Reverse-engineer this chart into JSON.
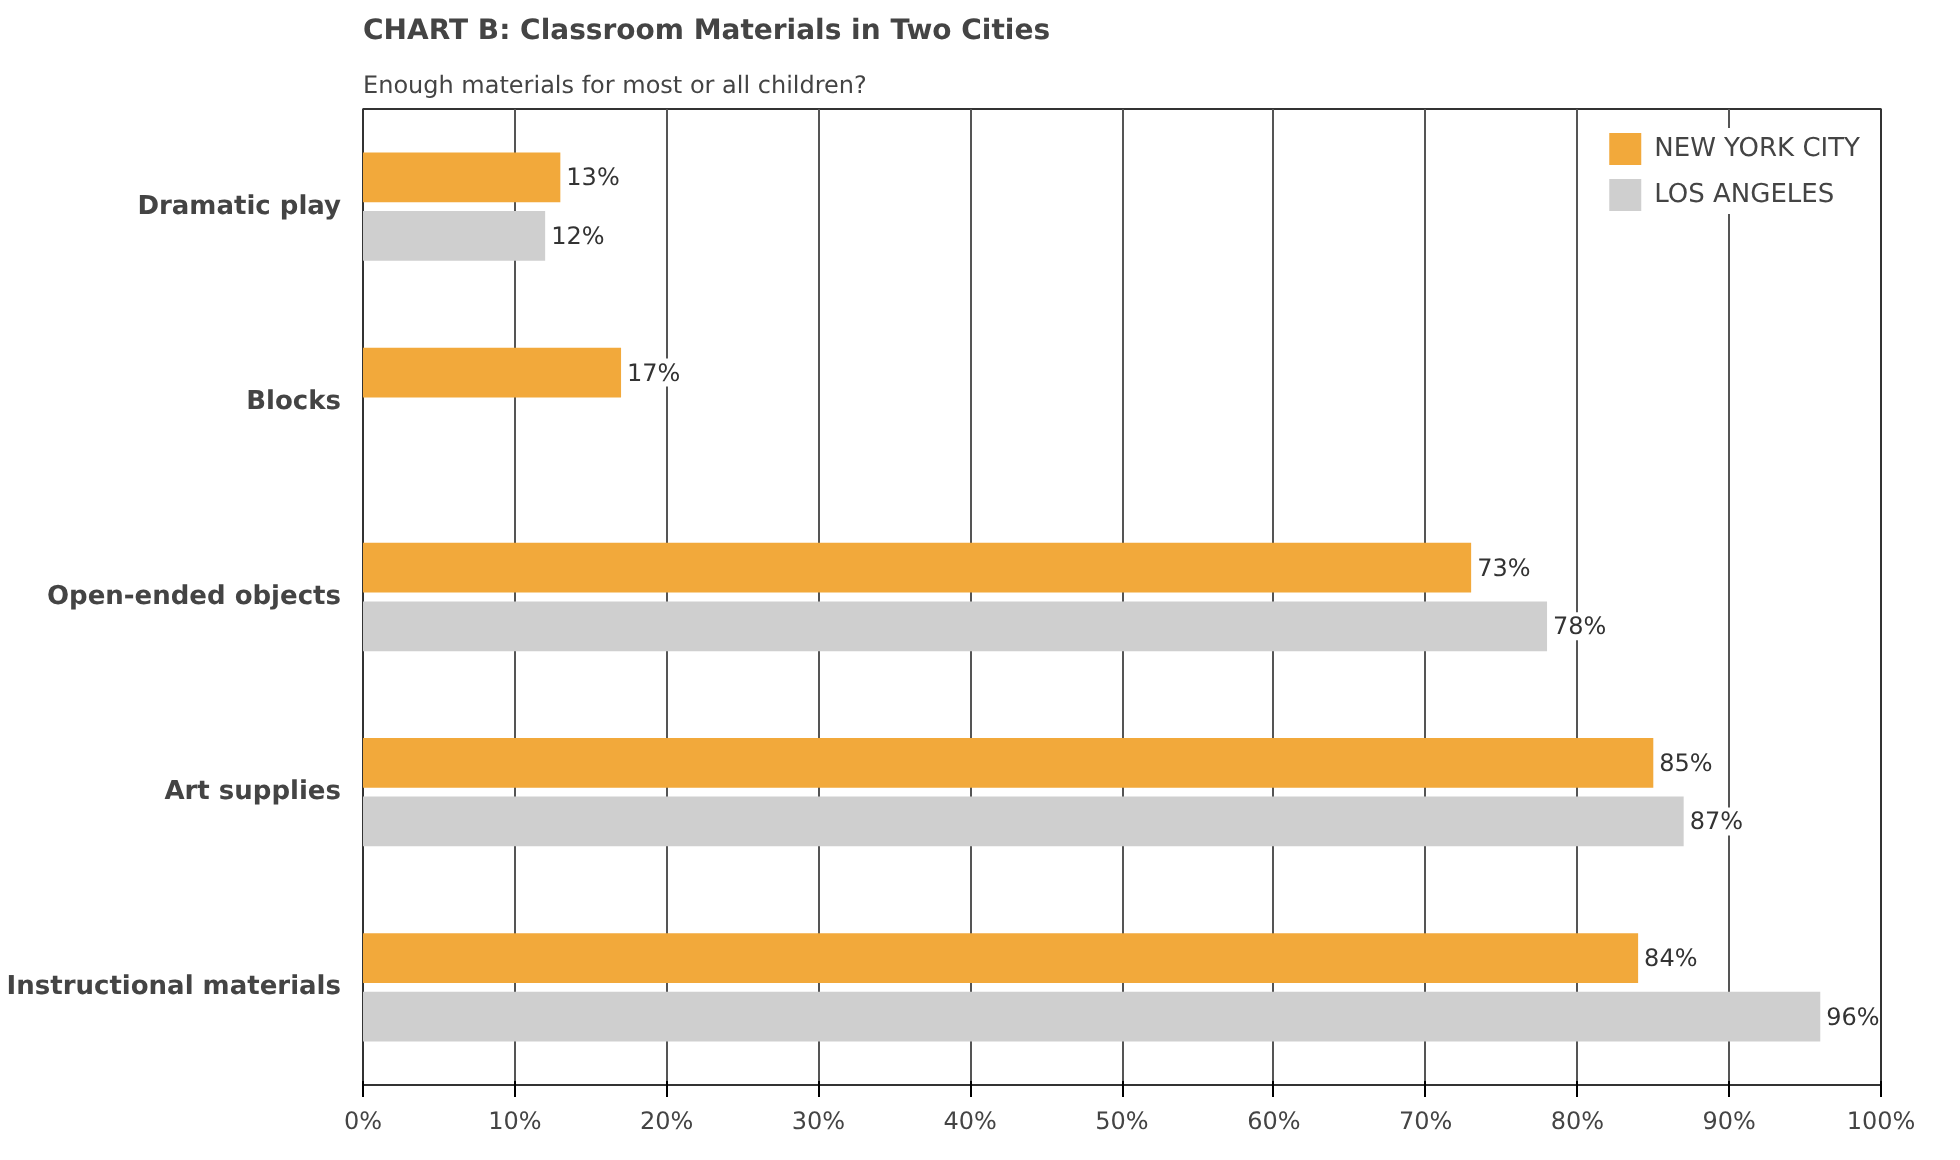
{
  "chart_data": {
    "type": "bar",
    "orientation": "horizontal",
    "title": "CHART B: Classroom Materials in Two Cities",
    "subtitle": "Enough materials for most or all children?",
    "categories": [
      "Dramatic play",
      "Blocks",
      "Open-ended objects",
      "Art supplies",
      "Instructional materials"
    ],
    "series": [
      {
        "name": "NEW YORK CITY",
        "color": "#f2a93b",
        "values": [
          13,
          17,
          73,
          85,
          84
        ],
        "value_labels": [
          "13%",
          "17%",
          "73%",
          "85%",
          "84%"
        ]
      },
      {
        "name": "LOS ANGELES",
        "color": "#cfcfcf",
        "values": [
          12,
          null,
          78,
          87,
          96
        ],
        "value_labels": [
          "12%",
          null,
          "78%",
          "87%",
          "96%"
        ]
      }
    ],
    "xlim": [
      0,
      100
    ],
    "xticks": [
      {
        "value": 0,
        "label": "0%"
      },
      {
        "value": 10,
        "label": "10%"
      },
      {
        "value": 20,
        "label": "20%"
      },
      {
        "value": 30,
        "label": "30%"
      },
      {
        "value": 40,
        "label": "40%"
      },
      {
        "value": 50,
        "label": "50%"
      },
      {
        "value": 60,
        "label": "60%"
      },
      {
        "value": 70,
        "label": "70%"
      },
      {
        "value": 80,
        "label": "80%"
      },
      {
        "value": 90,
        "label": "90%"
      },
      {
        "value": 100,
        "label": "100%"
      }
    ],
    "grid": "x",
    "legend": "top right"
  }
}
